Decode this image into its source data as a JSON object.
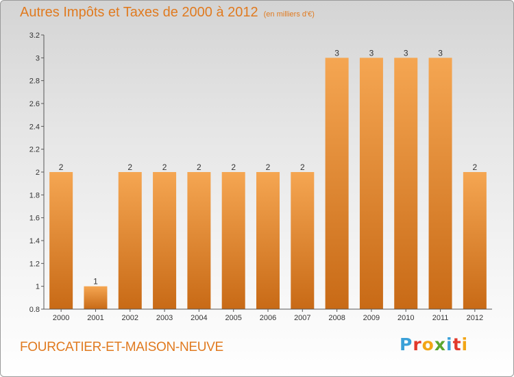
{
  "header": {
    "title": "Autres Impôts et Taxes de 2000 à 2012",
    "unit": "(en milliers d'€)"
  },
  "footer": {
    "commune": "FOURCATIER-ET-MAISON-NEUVE",
    "brand": [
      "P",
      "r",
      "o",
      "x",
      "i",
      "t",
      "i"
    ]
  },
  "colors": {
    "bar_light": "#f5a652",
    "bar_dark": "#c86a16",
    "title": "#e07a1f",
    "axis": "#555555"
  },
  "chart_data": {
    "type": "bar",
    "title": "Autres Impôts et Taxes de 2000 à 2012",
    "subtitle": "(en milliers d'€)",
    "categories": [
      "2000",
      "2001",
      "2002",
      "2003",
      "2004",
      "2005",
      "2006",
      "2007",
      "2008",
      "2009",
      "2010",
      "2011",
      "2012"
    ],
    "values": [
      2,
      1,
      2,
      2,
      2,
      2,
      2,
      2,
      3,
      3,
      3,
      3,
      2
    ],
    "data_labels": [
      "2",
      "1",
      "2",
      "2",
      "2",
      "2",
      "2",
      "2",
      "3",
      "3",
      "3",
      "3",
      "2"
    ],
    "ylim": [
      0.8,
      3.2
    ],
    "yticks": [
      0.8,
      1,
      1.2,
      1.4,
      1.6,
      1.8,
      2,
      2.2,
      2.4,
      2.6,
      2.8,
      3,
      3.2
    ],
    "ytick_labels": [
      "0.8",
      "1",
      "1.2",
      "1.4",
      "1.6",
      "1.8",
      "2",
      "2.2",
      "2.4",
      "2.6",
      "2.8",
      "3",
      "3.2"
    ],
    "xlabel": "",
    "ylabel": "",
    "grid": false,
    "legend": "none"
  }
}
